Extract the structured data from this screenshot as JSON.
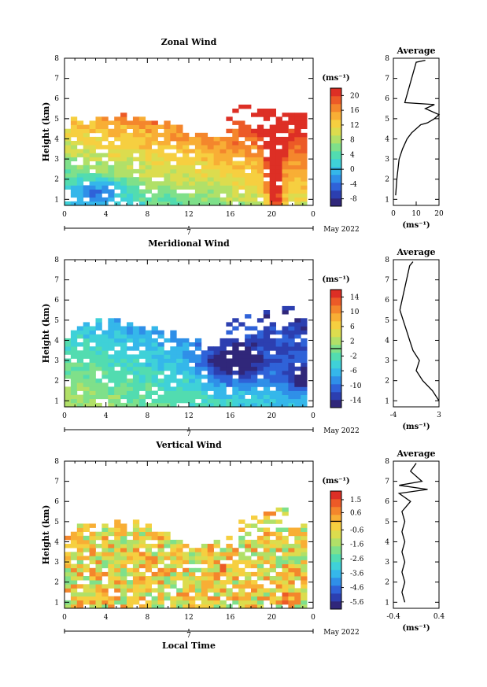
{
  "labels": {
    "height_axis": "Height (km)",
    "date_label": "May 2022",
    "day_label": "7",
    "x_axis": "Local Time",
    "average_title": "Average"
  },
  "chart_data": [
    {
      "type": "heatmap",
      "title": "Zonal Wind",
      "colorbar_label": "(ms⁻¹)",
      "colorbar_ticks": [
        "20",
        "16",
        "12",
        "8",
        "4",
        "0",
        "-4",
        "-8"
      ],
      "colorbar_range": [
        -10,
        22
      ],
      "x_ticks": [
        "0",
        "4",
        "8",
        "12",
        "16",
        "20",
        "0"
      ],
      "xlim": [
        0,
        24
      ],
      "y_ticks": [
        "1",
        "2",
        "3",
        "4",
        "5",
        "6",
        "7",
        "8"
      ],
      "ylim": [
        0.7,
        8.0
      ],
      "profile": {
        "title": "Average",
        "x_ticks": [
          "0",
          "10",
          "20"
        ],
        "xlim": [
          0,
          20
        ],
        "xlabel": "(ms⁻¹)",
        "points": [
          [
            1,
            1.2
          ],
          [
            1.5,
            2
          ],
          [
            2.5,
            3
          ],
          [
            4,
            3.5
          ],
          [
            6,
            4
          ],
          [
            8,
            4.3
          ],
          [
            12,
            4.7
          ],
          [
            15,
            4.8
          ],
          [
            18,
            5
          ],
          [
            20,
            5.2
          ],
          [
            14,
            5.5
          ],
          [
            18,
            5.7
          ],
          [
            5,
            5.8
          ],
          [
            10,
            7.8
          ],
          [
            14,
            7.9
          ]
        ]
      },
      "field": {
        "base": 2,
        "tgrad": 0.4,
        "zgrad": 3.0,
        "top_base": 4.6,
        "blobs": [
          [
            20,
            5.0,
            14,
            0.8,
            10
          ],
          [
            3,
            1.3,
            -8,
            2.5,
            0.6
          ]
        ]
      }
    },
    {
      "type": "heatmap",
      "title": "Meridional Wind",
      "colorbar_label": "(ms⁻¹)",
      "colorbar_ticks": [
        "14",
        "10",
        "6",
        "2",
        "-2",
        "-6",
        "-10",
        "-14"
      ],
      "colorbar_range": [
        -16,
        16
      ],
      "x_ticks": [
        "0",
        "4",
        "8",
        "12",
        "16",
        "20",
        "0"
      ],
      "xlim": [
        0,
        24
      ],
      "y_ticks": [
        "1",
        "2",
        "3",
        "4",
        "5",
        "6",
        "7",
        "8"
      ],
      "ylim": [
        0.7,
        8.0
      ],
      "profile": {
        "title": "Average",
        "x_ticks": [
          "-4",
          "3"
        ],
        "xlim": [
          -4,
          3
        ],
        "xlabel": "(ms⁻¹)",
        "points": [
          [
            3,
            1
          ],
          [
            2,
            1.5
          ],
          [
            0.5,
            2
          ],
          [
            -0.5,
            2.5
          ],
          [
            0,
            3
          ],
          [
            -1,
            3.5
          ],
          [
            -1.5,
            4
          ],
          [
            -2,
            4.5
          ],
          [
            -2.5,
            5
          ],
          [
            -3,
            5.5
          ],
          [
            -2.8,
            5.8
          ],
          [
            -1.5,
            7.7
          ],
          [
            -1,
            7.9
          ]
        ]
      },
      "field": {
        "base": 2,
        "tgrad": -0.4,
        "zgrad": -1.8,
        "top_base": 4.3,
        "blobs": [
          [
            16,
            2.8,
            -10,
            3,
            1.0
          ],
          [
            23,
            2.0,
            -12,
            1.5,
            0.5
          ]
        ]
      }
    },
    {
      "type": "heatmap",
      "title": "Vertical Wind",
      "colorbar_label": "(ms⁻¹)",
      "colorbar_ticks": [
        "1.5",
        "0.6",
        "-0.6",
        "-1.6",
        "-2.6",
        "-3.6",
        "-4.6",
        "-5.6"
      ],
      "colorbar_range": [
        -6.1,
        2.1
      ],
      "x_ticks": [
        "0",
        "4",
        "8",
        "12",
        "16",
        "20",
        "0"
      ],
      "xlim": [
        0,
        24
      ],
      "y_ticks": [
        "1",
        "2",
        "3",
        "4",
        "5",
        "6",
        "7",
        "8"
      ],
      "ylim": [
        0.7,
        8.0
      ],
      "profile": {
        "title": "Average",
        "x_ticks": [
          "-0.4",
          "0.4"
        ],
        "xlim": [
          -0.4,
          0.4
        ],
        "xlabel": "(ms⁻¹)",
        "points": [
          [
            -0.2,
            1
          ],
          [
            -0.25,
            1.5
          ],
          [
            -0.2,
            2
          ],
          [
            -0.25,
            2.5
          ],
          [
            -0.2,
            3
          ],
          [
            -0.25,
            3.5
          ],
          [
            -0.2,
            4
          ],
          [
            -0.25,
            4.5
          ],
          [
            -0.2,
            5
          ],
          [
            -0.25,
            5.5
          ],
          [
            -0.1,
            6
          ],
          [
            -0.3,
            6.4
          ],
          [
            0.2,
            6.6
          ],
          [
            -0.3,
            6.8
          ],
          [
            0.1,
            7
          ],
          [
            -0.1,
            7.5
          ],
          [
            0,
            7.9
          ]
        ]
      },
      "field": {
        "base": -0.7,
        "tgrad": 0,
        "zgrad": 0,
        "top_base": 4.3,
        "blobs": [
          [
            15,
            2.0,
            1.0,
            0.8,
            1.0
          ],
          [
            21,
            1.5,
            0.7,
            1.5,
            0.8
          ]
        ]
      }
    }
  ]
}
